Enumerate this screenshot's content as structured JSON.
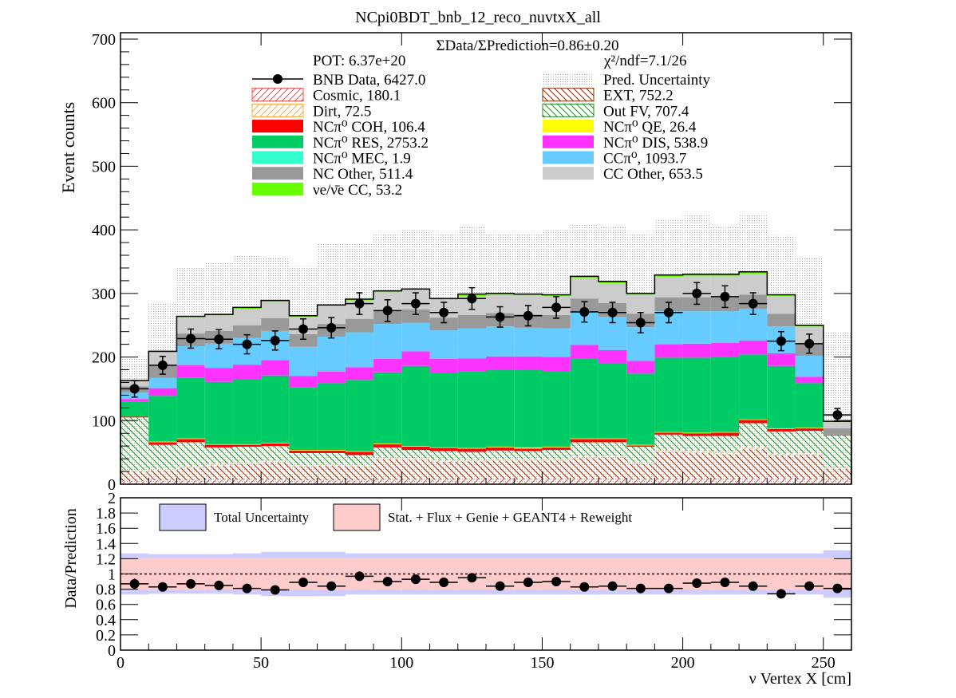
{
  "chart_data": [
    {
      "type": "stacked-histogram",
      "title": "NCpi0BDT_bnb_12_reco_nuvtxX_all",
      "ylabel": "Event counts",
      "xlabel": "",
      "ratio_text": "ΣData/ΣPrediction=0.86±0.20",
      "pot_text": "POT: 6.37e+20",
      "chi2_text": "χ²/ndf=7.1/26",
      "xlim": [
        0,
        260
      ],
      "ylim": [
        0,
        710
      ],
      "x_ticks": [
        0,
        50,
        100,
        150,
        200,
        250
      ],
      "y_ticks": [
        0,
        100,
        200,
        300,
        400,
        500,
        600,
        700
      ],
      "bin_edges": [
        0,
        10,
        20,
        30,
        40,
        50,
        60,
        70,
        80,
        90,
        100,
        110,
        120,
        130,
        140,
        150,
        160,
        170,
        180,
        190,
        200,
        210,
        220,
        230,
        240,
        250,
        260
      ],
      "series": [
        {
          "name": "Cosmic, 180.1",
          "color": "#ff4444",
          "hatch": "diag-left",
          "values": [
            5,
            6,
            6,
            7,
            7,
            7,
            6,
            6,
            6,
            7,
            7,
            7,
            8,
            8,
            8,
            8,
            8,
            8,
            7,
            8,
            8,
            8,
            9,
            9,
            8,
            7
          ]
        },
        {
          "name": "EXT, 752.2",
          "color": "#8b2a00",
          "hatch": "diag-right",
          "values": [
            15,
            16,
            20,
            22,
            25,
            27,
            22,
            23,
            22,
            32,
            31,
            28,
            28,
            29,
            29,
            29,
            33,
            34,
            25,
            43,
            41,
            39,
            46,
            36,
            38,
            17
          ]
        },
        {
          "name": "Dirt, 72.5",
          "color": "#ffaa33",
          "hatch": "diag-left",
          "values": [
            2,
            2,
            2,
            3,
            3,
            3,
            2,
            2,
            2,
            3,
            3,
            3,
            3,
            3,
            3,
            3,
            3,
            3,
            3,
            3,
            4,
            4,
            4,
            3,
            3,
            2
          ]
        },
        {
          "name": "Out FV, 707.4",
          "color": "#228b22",
          "hatch": "diag-right",
          "values": [
            83,
            38,
            38,
            26,
            24,
            23,
            19,
            18,
            16,
            16,
            13,
            14,
            12,
            13,
            12,
            14,
            22,
            21,
            24,
            24,
            23,
            25,
            37,
            35,
            35,
            51
          ]
        },
        {
          "name": "NCπ⁰ COH,  106.4",
          "color": "#ff0000",
          "values": [
            1,
            4,
            5,
            4,
            3,
            4,
            4,
            4,
            5,
            5,
            5,
            5,
            5,
            5,
            4,
            4,
            5,
            5,
            2,
            3,
            4,
            5,
            5,
            4,
            4,
            1
          ]
        },
        {
          "name": "NCπ⁰ QE,  26.4",
          "color": "#ffff00",
          "values": [
            0,
            1,
            1,
            1,
            1,
            1,
            1,
            1,
            1,
            1,
            1,
            1,
            1,
            1,
            2,
            1,
            1,
            1,
            1,
            1,
            1,
            1,
            1,
            1,
            1,
            0
          ]
        },
        {
          "name": "NCπ⁰ RES,  2753.2",
          "color": "#00cc66",
          "values": [
            24,
            72,
            95,
            98,
            102,
            106,
            98,
            105,
            112,
            112,
            126,
            117,
            120,
            121,
            122,
            119,
            125,
            118,
            112,
            117,
            118,
            118,
            102,
            98,
            70,
            0
          ]
        },
        {
          "name": "NCπ⁰ DIS,  538.9",
          "color": "#ff33ff",
          "values": [
            4,
            12,
            20,
            22,
            23,
            24,
            18,
            18,
            20,
            21,
            23,
            22,
            21,
            21,
            21,
            22,
            22,
            21,
            20,
            21,
            22,
            22,
            22,
            20,
            10,
            0
          ]
        },
        {
          "name": "NCπ⁰ MEC,  1.9",
          "color": "#33ffcc",
          "values": [
            0,
            0,
            0,
            0,
            0,
            0,
            0,
            0,
            0,
            0,
            0,
            0,
            0,
            0,
            0,
            0,
            0,
            0,
            0,
            0,
            0,
            0,
            0,
            0,
            0,
            0
          ]
        },
        {
          "name": "CCπ⁰, 1093.7",
          "color": "#66ccff",
          "values": [
            10,
            16,
            30,
            38,
            42,
            46,
            46,
            55,
            55,
            55,
            45,
            45,
            47,
            47,
            45,
            45,
            52,
            52,
            53,
            52,
            51,
            50,
            50,
            42,
            33,
            0
          ]
        },
        {
          "name": "NC Other, 511.4",
          "color": "#999999",
          "values": [
            10,
            20,
            20,
            20,
            20,
            20,
            20,
            20,
            21,
            21,
            21,
            20,
            21,
            21,
            21,
            21,
            21,
            22,
            21,
            22,
            22,
            22,
            22,
            20,
            20,
            10
          ]
        },
        {
          "name": "CC Other, 653.5",
          "color": "#cccccc",
          "values": [
            8,
            20,
            25,
            24,
            26,
            26,
            27,
            28,
            29,
            29,
            30,
            28,
            30,
            29,
            30,
            30,
            32,
            31,
            30,
            32,
            33,
            33,
            33,
            28,
            26,
            10
          ]
        },
        {
          "name": "νe/ν̄e CC, 53.2",
          "color": "#66ff00",
          "values": [
            1,
            2,
            2,
            2,
            2,
            2,
            2,
            2,
            2,
            2,
            2,
            2,
            3,
            2,
            2,
            2,
            3,
            3,
            2,
            3,
            3,
            3,
            3,
            2,
            2,
            1
          ]
        }
      ],
      "uncertainty_band": {
        "name": "Pred. Uncertainty",
        "color": "#bbbbbb",
        "upper": [
          200,
          285,
          340,
          350,
          360,
          355,
          343,
          380,
          380,
          395,
          400,
          395,
          405,
          395,
          395,
          400,
          410,
          405,
          395,
          415,
          425,
          405,
          425,
          392,
          355,
          240
        ]
      },
      "data": {
        "name": "BNB Data, 6427.0",
        "color": "#000000",
        "values": [
          150,
          187,
          229,
          228,
          220,
          226,
          244,
          246,
          284,
          273,
          284,
          270,
          292,
          263,
          265,
          278,
          271,
          270,
          254,
          270,
          300,
          295,
          284,
          225,
          221,
          109
        ],
        "errors": [
          13,
          14,
          15,
          15,
          15,
          15,
          16,
          16,
          17,
          17,
          17,
          16,
          17,
          16,
          16,
          17,
          16,
          16,
          16,
          16,
          17,
          17,
          17,
          15,
          15,
          10
        ]
      }
    },
    {
      "type": "ratio",
      "ylabel": "Data/Prediction",
      "xlabel": "ν Vertex X [cm]",
      "ylim": [
        0,
        2
      ],
      "y_ticks": [
        0,
        0.2,
        0.4,
        0.6,
        0.8,
        1,
        1.2,
        1.4,
        1.6,
        1.8,
        2
      ],
      "y_tick_labels": [
        "0",
        "0.2",
        "0.4",
        "0.6",
        "0.8",
        "1",
        "1.2",
        "1.4",
        "1.6",
        "1.8",
        "2"
      ],
      "x_ticks": [
        0,
        50,
        100,
        150,
        200,
        250
      ],
      "legend": [
        {
          "name": "Total Uncertainty",
          "color": "#ccccff"
        },
        {
          "name": "Stat. + Flux + Genie + GEANT4 + Reweight",
          "color": "#ffcccc"
        }
      ],
      "total_band": {
        "lo": [
          0.73,
          0.74,
          0.74,
          0.74,
          0.73,
          0.71,
          0.71,
          0.71,
          0.73,
          0.73,
          0.73,
          0.73,
          0.73,
          0.73,
          0.73,
          0.73,
          0.73,
          0.73,
          0.73,
          0.73,
          0.73,
          0.73,
          0.73,
          0.73,
          0.73,
          0.69
        ],
        "hi": [
          1.27,
          1.26,
          1.26,
          1.26,
          1.27,
          1.29,
          1.29,
          1.29,
          1.27,
          1.27,
          1.27,
          1.27,
          1.27,
          1.27,
          1.27,
          1.27,
          1.27,
          1.27,
          1.27,
          1.27,
          1.27,
          1.27,
          1.27,
          1.27,
          1.27,
          1.31
        ]
      },
      "syst_band": {
        "lo": [
          0.79,
          0.79,
          0.79,
          0.79,
          0.79,
          0.79,
          0.79,
          0.79,
          0.79,
          0.79,
          0.79,
          0.79,
          0.79,
          0.79,
          0.79,
          0.79,
          0.79,
          0.79,
          0.79,
          0.79,
          0.79,
          0.79,
          0.79,
          0.79,
          0.79,
          0.79
        ],
        "hi": [
          1.21,
          1.21,
          1.21,
          1.21,
          1.21,
          1.21,
          1.21,
          1.21,
          1.21,
          1.21,
          1.21,
          1.21,
          1.21,
          1.21,
          1.21,
          1.21,
          1.21,
          1.21,
          1.21,
          1.21,
          1.21,
          1.21,
          1.21,
          1.21,
          1.21,
          1.21
        ]
      },
      "values": [
        0.87,
        0.83,
        0.87,
        0.85,
        0.81,
        0.79,
        0.89,
        0.84,
        0.97,
        0.9,
        0.93,
        0.89,
        0.95,
        0.84,
        0.89,
        0.9,
        0.83,
        0.84,
        0.81,
        0.81,
        0.88,
        0.89,
        0.84,
        0.74,
        0.84,
        0.81
      ],
      "errors": [
        0.07,
        0.04,
        0.03,
        0.03,
        0.03,
        0.03,
        0.03,
        0.03,
        0.03,
        0.03,
        0.03,
        0.03,
        0.03,
        0.03,
        0.03,
        0.03,
        0.03,
        0.03,
        0.03,
        0.03,
        0.03,
        0.03,
        0.03,
        0.03,
        0.03,
        0.06
      ]
    }
  ]
}
